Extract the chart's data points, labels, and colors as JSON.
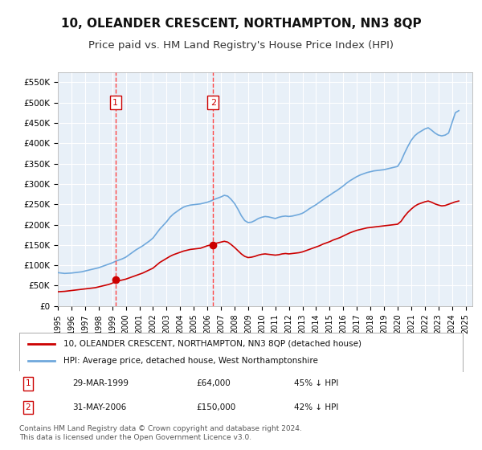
{
  "title": "10, OLEANDER CRESCENT, NORTHAMPTON, NN3 8QP",
  "subtitle": "Price paid vs. HM Land Registry's House Price Index (HPI)",
  "title_fontsize": 11,
  "subtitle_fontsize": 9.5,
  "background_color": "#ffffff",
  "plot_bg_color": "#e8f0f8",
  "grid_color": "#ffffff",
  "ylim": [
    0,
    575000
  ],
  "xlim_start": 1995.0,
  "xlim_end": 2025.5,
  "yticks": [
    0,
    50000,
    100000,
    150000,
    200000,
    250000,
    300000,
    350000,
    400000,
    450000,
    500000,
    550000
  ],
  "ytick_labels": [
    "£0",
    "£50K",
    "£100K",
    "£150K",
    "£200K",
    "£250K",
    "£300K",
    "£350K",
    "£400K",
    "£450K",
    "£500K",
    "£550K"
  ],
  "xticks": [
    1995,
    1996,
    1997,
    1998,
    1999,
    2000,
    2001,
    2002,
    2003,
    2004,
    2005,
    2006,
    2007,
    2008,
    2009,
    2010,
    2011,
    2012,
    2013,
    2014,
    2015,
    2016,
    2017,
    2018,
    2019,
    2020,
    2021,
    2022,
    2023,
    2024,
    2025
  ],
  "hpi_line_color": "#6fa8dc",
  "property_line_color": "#cc0000",
  "sale1_x": 1999.24,
  "sale1_y": 64000,
  "sale2_x": 2006.42,
  "sale2_y": 150000,
  "vline_color": "#ff4444",
  "legend_label_red": "10, OLEANDER CRESCENT, NORTHAMPTON, NN3 8QP (detached house)",
  "legend_label_blue": "HPI: Average price, detached house, West Northamptonshire",
  "table_rows": [
    {
      "num": "1",
      "date": "29-MAR-1999",
      "price": "£64,000",
      "pct": "45% ↓ HPI"
    },
    {
      "num": "2",
      "date": "31-MAY-2006",
      "price": "£150,000",
      "pct": "42% ↓ HPI"
    }
  ],
  "footer": "Contains HM Land Registry data © Crown copyright and database right 2024.\nThis data is licensed under the Open Government Licence v3.0.",
  "hpi_x": [
    1995.0,
    1995.25,
    1995.5,
    1995.75,
    1996.0,
    1996.25,
    1996.5,
    1996.75,
    1997.0,
    1997.25,
    1997.5,
    1997.75,
    1998.0,
    1998.25,
    1998.5,
    1998.75,
    1999.0,
    1999.25,
    1999.5,
    1999.75,
    2000.0,
    2000.25,
    2000.5,
    2000.75,
    2001.0,
    2001.25,
    2001.5,
    2001.75,
    2002.0,
    2002.25,
    2002.5,
    2002.75,
    2003.0,
    2003.25,
    2003.5,
    2003.75,
    2004.0,
    2004.25,
    2004.5,
    2004.75,
    2005.0,
    2005.25,
    2005.5,
    2005.75,
    2006.0,
    2006.25,
    2006.5,
    2006.75,
    2007.0,
    2007.25,
    2007.5,
    2007.75,
    2008.0,
    2008.25,
    2008.5,
    2008.75,
    2009.0,
    2009.25,
    2009.5,
    2009.75,
    2010.0,
    2010.25,
    2010.5,
    2010.75,
    2011.0,
    2011.25,
    2011.5,
    2011.75,
    2012.0,
    2012.25,
    2012.5,
    2012.75,
    2013.0,
    2013.25,
    2013.5,
    2013.75,
    2014.0,
    2014.25,
    2014.5,
    2014.75,
    2015.0,
    2015.25,
    2015.5,
    2015.75,
    2016.0,
    2016.25,
    2016.5,
    2016.75,
    2017.0,
    2017.25,
    2017.5,
    2017.75,
    2018.0,
    2018.25,
    2018.5,
    2018.75,
    2019.0,
    2019.25,
    2019.5,
    2019.75,
    2020.0,
    2020.25,
    2020.5,
    2020.75,
    2021.0,
    2021.25,
    2021.5,
    2021.75,
    2022.0,
    2022.25,
    2022.5,
    2022.75,
    2023.0,
    2023.25,
    2023.5,
    2023.75,
    2024.0,
    2024.25,
    2024.5
  ],
  "hpi_y": [
    82000,
    81000,
    80000,
    80500,
    81000,
    82000,
    83000,
    84000,
    86000,
    88000,
    90000,
    92000,
    94000,
    97000,
    100000,
    103000,
    106000,
    110000,
    113000,
    116000,
    120000,
    126000,
    132000,
    138000,
    143000,
    148000,
    154000,
    160000,
    167000,
    178000,
    189000,
    198000,
    207000,
    218000,
    226000,
    232000,
    238000,
    243000,
    246000,
    248000,
    249000,
    250000,
    251000,
    253000,
    255000,
    258000,
    262000,
    265000,
    268000,
    272000,
    270000,
    262000,
    252000,
    238000,
    222000,
    210000,
    205000,
    206000,
    210000,
    215000,
    218000,
    220000,
    219000,
    217000,
    215000,
    218000,
    220000,
    221000,
    220000,
    221000,
    223000,
    225000,
    228000,
    233000,
    239000,
    244000,
    249000,
    255000,
    261000,
    267000,
    272000,
    278000,
    283000,
    289000,
    295000,
    302000,
    308000,
    313000,
    318000,
    322000,
    325000,
    328000,
    330000,
    332000,
    333000,
    334000,
    335000,
    337000,
    339000,
    341000,
    343000,
    356000,
    375000,
    392000,
    407000,
    418000,
    425000,
    430000,
    435000,
    438000,
    432000,
    425000,
    420000,
    418000,
    420000,
    425000,
    450000,
    475000,
    480000
  ],
  "prop_x": [
    1995.0,
    1995.25,
    1995.5,
    1995.75,
    1996.0,
    1996.25,
    1996.5,
    1996.75,
    1997.0,
    1997.25,
    1997.5,
    1997.75,
    1998.0,
    1998.25,
    1998.5,
    1998.75,
    1999.0,
    1999.25,
    1999.5,
    1999.75,
    2000.0,
    2000.25,
    2000.5,
    2000.75,
    2001.0,
    2001.25,
    2001.5,
    2001.75,
    2002.0,
    2002.25,
    2002.5,
    2002.75,
    2003.0,
    2003.25,
    2003.5,
    2003.75,
    2004.0,
    2004.25,
    2004.5,
    2004.75,
    2005.0,
    2005.25,
    2005.5,
    2005.75,
    2006.0,
    2006.25,
    2006.5,
    2006.75,
    2007.0,
    2007.25,
    2007.5,
    2007.75,
    2008.0,
    2008.25,
    2008.5,
    2008.75,
    2009.0,
    2009.25,
    2009.5,
    2009.75,
    2010.0,
    2010.25,
    2010.5,
    2010.75,
    2011.0,
    2011.25,
    2011.5,
    2011.75,
    2012.0,
    2012.25,
    2012.5,
    2012.75,
    2013.0,
    2013.25,
    2013.5,
    2013.75,
    2014.0,
    2014.25,
    2014.5,
    2014.75,
    2015.0,
    2015.25,
    2015.5,
    2015.75,
    2016.0,
    2016.25,
    2016.5,
    2016.75,
    2017.0,
    2017.25,
    2017.5,
    2017.75,
    2018.0,
    2018.25,
    2018.5,
    2018.75,
    2019.0,
    2019.25,
    2019.5,
    2019.75,
    2020.0,
    2020.25,
    2020.5,
    2020.75,
    2021.0,
    2021.25,
    2021.5,
    2021.75,
    2022.0,
    2022.25,
    2022.5,
    2022.75,
    2023.0,
    2023.25,
    2023.5,
    2023.75,
    2024.0,
    2024.25,
    2024.5
  ],
  "prop_y": [
    35000,
    35500,
    36000,
    37000,
    38000,
    39000,
    40000,
    41000,
    42000,
    43000,
    44000,
    45000,
    47000,
    49000,
    51000,
    53000,
    56000,
    60000,
    62000,
    64000,
    66000,
    69000,
    72000,
    75000,
    78000,
    81000,
    85000,
    89000,
    93000,
    100000,
    107000,
    112000,
    117000,
    122000,
    126000,
    129000,
    132000,
    135000,
    137000,
    139000,
    140000,
    141000,
    142000,
    145000,
    148000,
    150000,
    153000,
    155000,
    157000,
    159000,
    157000,
    151000,
    144000,
    136000,
    128000,
    122000,
    119000,
    120000,
    122000,
    125000,
    127000,
    128000,
    127000,
    126000,
    125000,
    126000,
    128000,
    129000,
    128000,
    129000,
    130000,
    131000,
    133000,
    136000,
    139000,
    142000,
    145000,
    148000,
    152000,
    155000,
    158000,
    162000,
    165000,
    168000,
    172000,
    176000,
    180000,
    183000,
    186000,
    188000,
    190000,
    192000,
    193000,
    194000,
    195000,
    196000,
    197000,
    198000,
    199000,
    200000,
    201000,
    208000,
    220000,
    230000,
    238000,
    245000,
    250000,
    253000,
    256000,
    258000,
    255000,
    251000,
    248000,
    246000,
    247000,
    250000,
    253000,
    256000,
    258000
  ]
}
